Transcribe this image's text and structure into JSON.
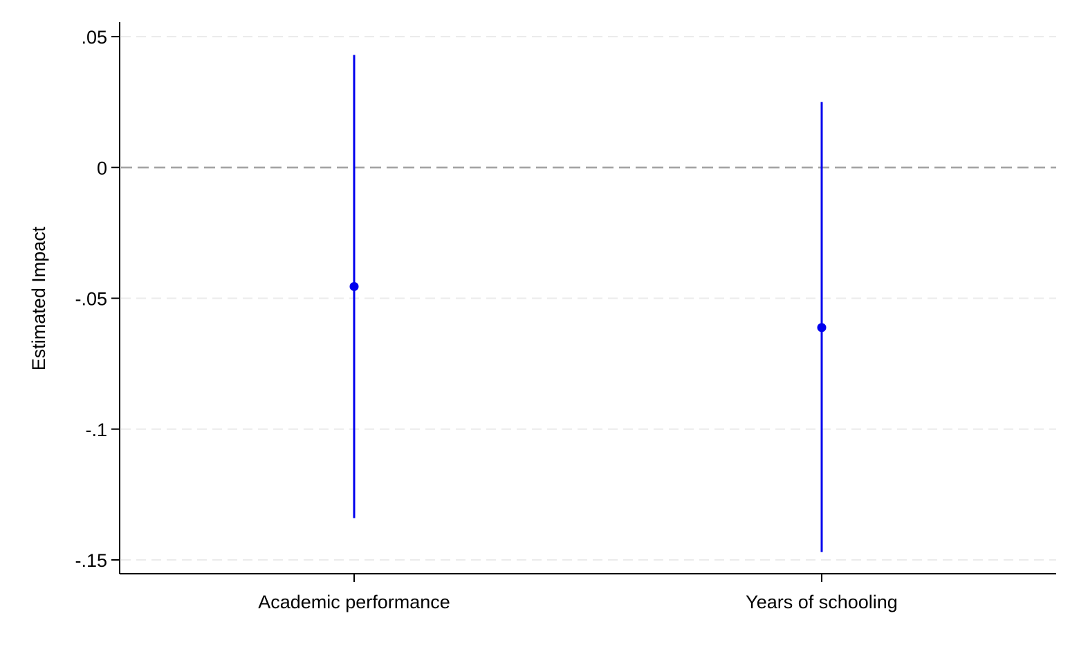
{
  "chart_data": {
    "type": "scatter",
    "subtype": "coefficient-plot-with-confidence-intervals",
    "title": "",
    "xlabel": "",
    "ylabel": "Estimated Impact",
    "categories": [
      "Academic performance",
      "Years of schooling"
    ],
    "series": [
      {
        "estimates": [
          -0.0455,
          -0.0612
        ],
        "ci_lower": [
          -0.134,
          -0.147
        ],
        "ci_upper": [
          0.043,
          0.025
        ]
      }
    ],
    "ylim": [
      -0.155,
      0.0555
    ],
    "yticks": [
      0.05,
      0,
      -0.05,
      -0.1,
      -0.15
    ],
    "ytick_labels": [
      ".05",
      "0",
      "-.05",
      "-.1",
      "-.15"
    ],
    "reference_line": 0,
    "grid": true,
    "legend": "none",
    "colors": {
      "marker": "#0000ee",
      "grid": "#ebebeb",
      "reference_line": "#a0a0a0",
      "axis": "#000000"
    }
  }
}
